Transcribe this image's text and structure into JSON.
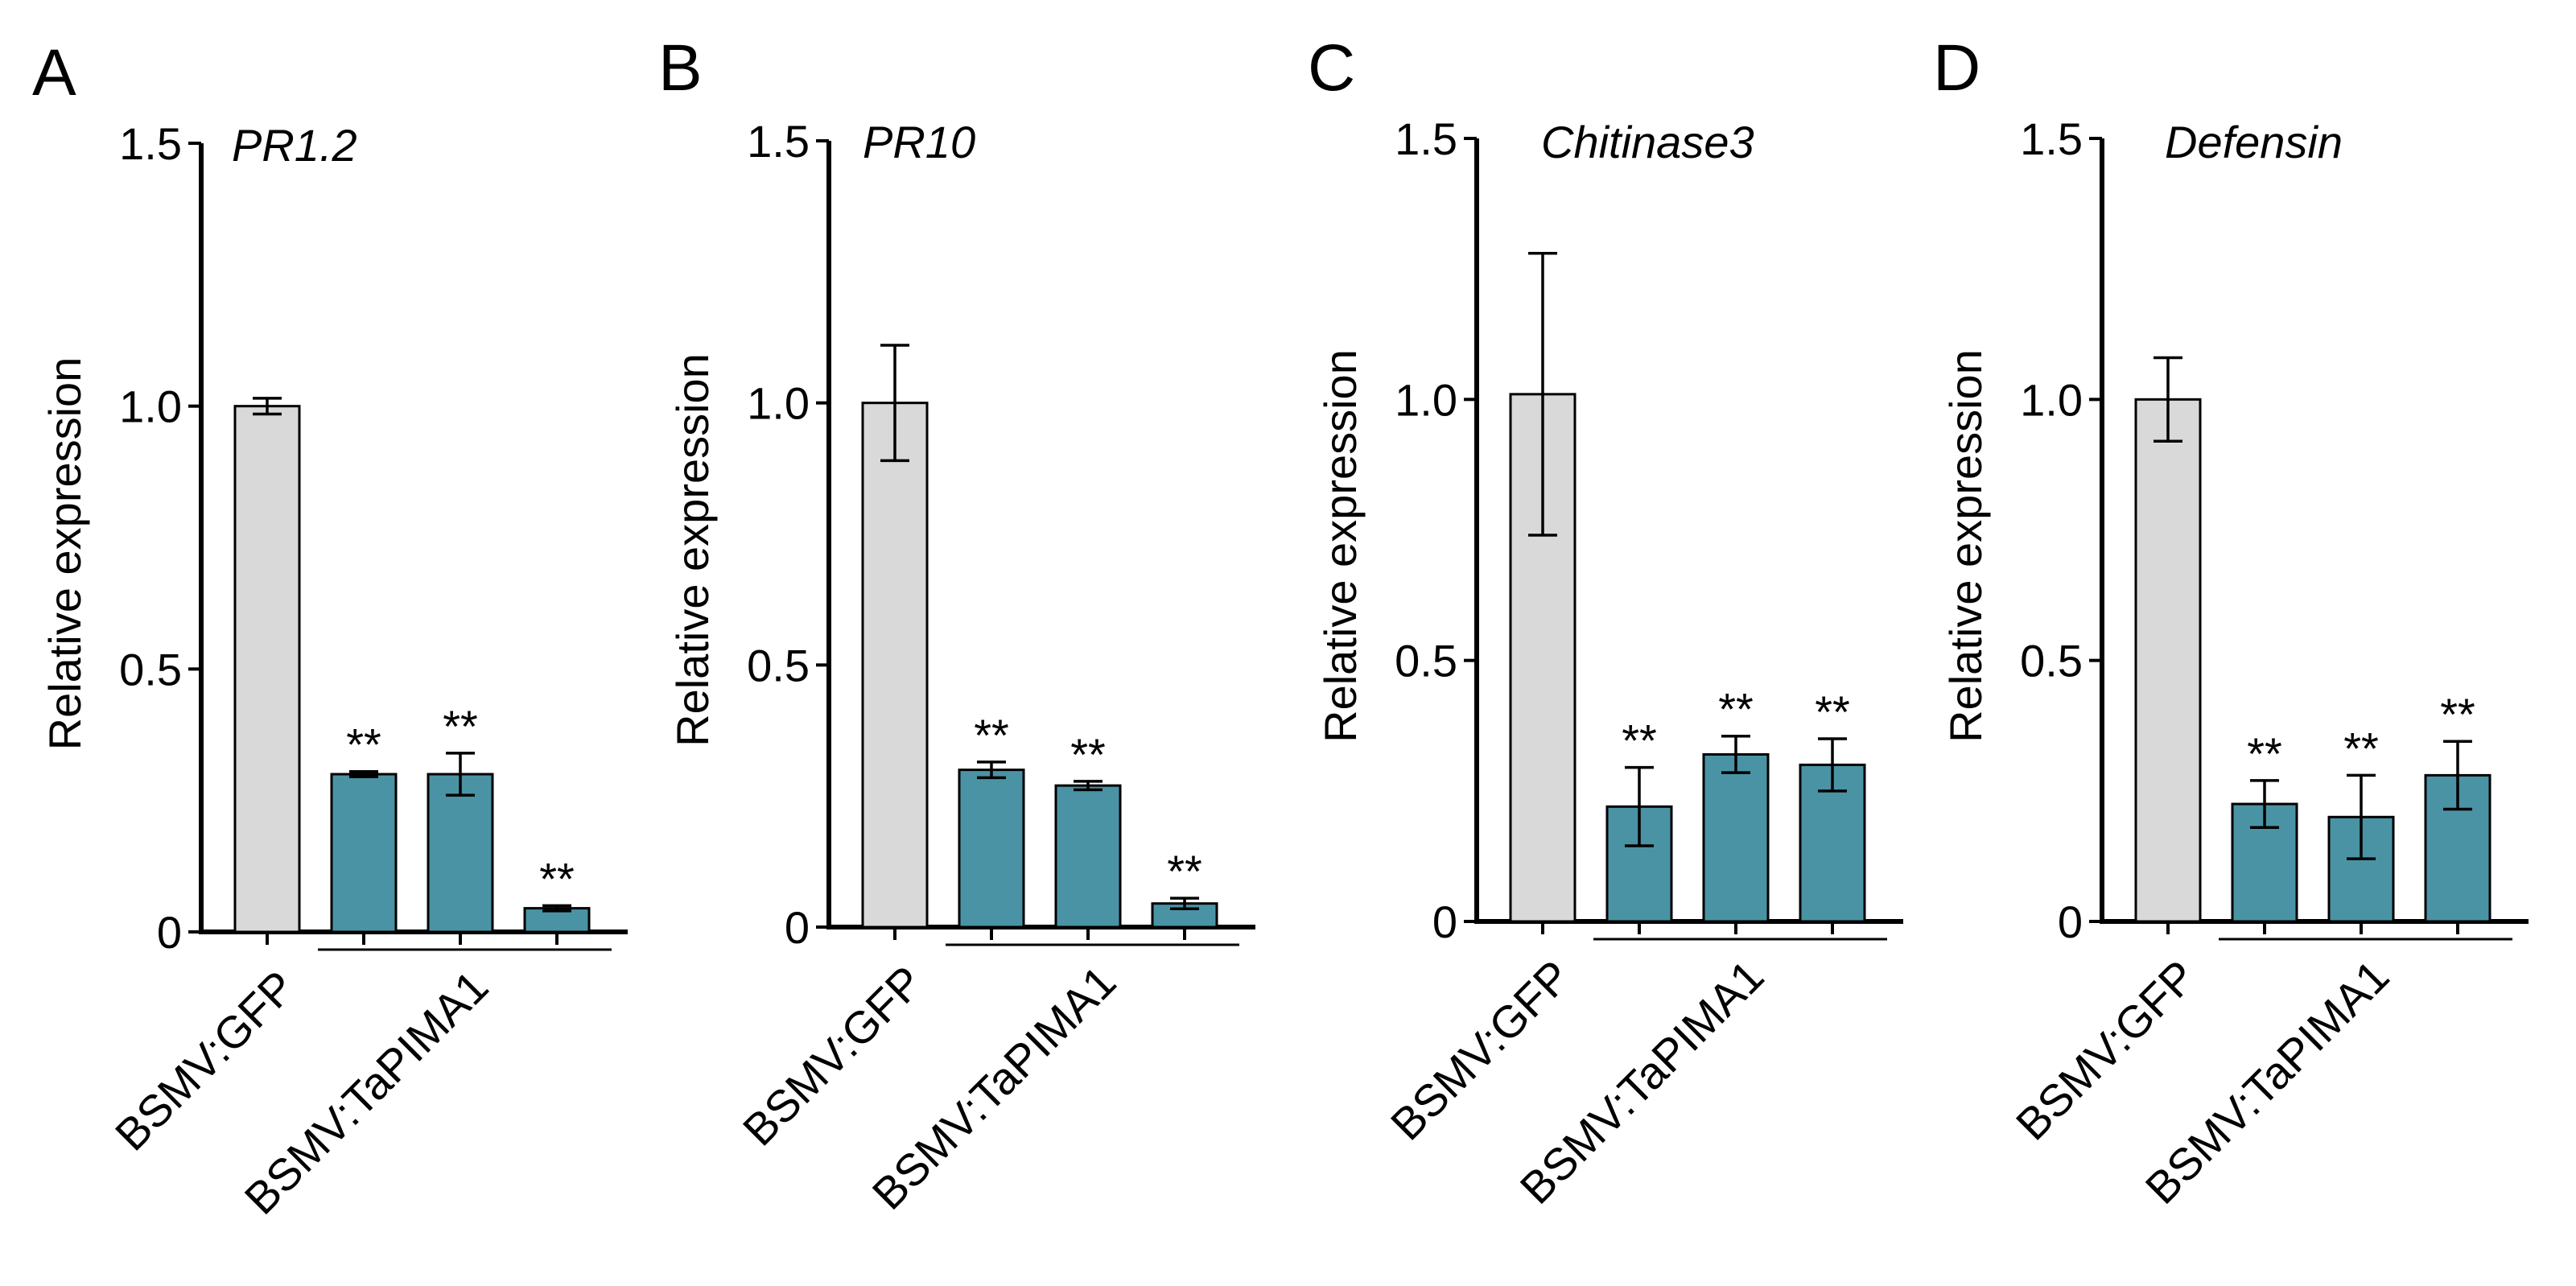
{
  "figure": {
    "colors": {
      "control": "#d9d9d9",
      "treatment": "#4a93a5",
      "stroke": "#000000"
    },
    "category_labels": {
      "control": "BSMV:GFP",
      "treatment": "BSMV:TaPIMA1"
    }
  },
  "chart_data": [
    {
      "type": "bar",
      "panel": "A",
      "title": "PR1.2",
      "xlabel": "",
      "ylabel": "Relative expression",
      "ylim": [
        0,
        1.5
      ],
      "yticks": [
        0,
        0.5,
        1.0,
        1.5
      ],
      "ytick_labels": [
        "0",
        "0.5",
        "1.0",
        "1.5"
      ],
      "categories": [
        "BSMV:GFP",
        "BSMV:TaPIMA1",
        "BSMV:TaPIMA1",
        "BSMV:TaPIMA1"
      ],
      "values": [
        1.0,
        0.3,
        0.3,
        0.045
      ],
      "errors": [
        0.015,
        0.005,
        0.04,
        0.005
      ],
      "significance": [
        "",
        "**",
        "**",
        "**"
      ]
    },
    {
      "type": "bar",
      "panel": "B",
      "title": "PR10",
      "xlabel": "",
      "ylabel": "Relative expression",
      "ylim": [
        0,
        1.5
      ],
      "yticks": [
        0,
        0.5,
        1.0,
        1.5
      ],
      "ytick_labels": [
        "0",
        "0.5",
        "1.0",
        "1.5"
      ],
      "categories": [
        "BSMV:GFP",
        "BSMV:TaPIMA1",
        "BSMV:TaPIMA1",
        "BSMV:TaPIMA1"
      ],
      "values": [
        1.0,
        0.3,
        0.27,
        0.045
      ],
      "errors": [
        0.11,
        0.015,
        0.008,
        0.01
      ],
      "significance": [
        "",
        "**",
        "**",
        "**"
      ]
    },
    {
      "type": "bar",
      "panel": "C",
      "title": "Chitinase3",
      "xlabel": "",
      "ylabel": "Relative expression",
      "ylim": [
        0,
        1.5
      ],
      "yticks": [
        0,
        0.5,
        1.0,
        1.5
      ],
      "ytick_labels": [
        "0",
        "0.5",
        "1.0",
        "1.5"
      ],
      "categories": [
        "BSMV:GFP",
        "BSMV:TaPIMA1",
        "BSMV:TaPIMA1",
        "BSMV:TaPIMA1"
      ],
      "values": [
        1.01,
        0.22,
        0.32,
        0.3
      ],
      "errors": [
        0.27,
        0.075,
        0.035,
        0.05
      ],
      "significance": [
        "",
        "**",
        "**",
        "**"
      ]
    },
    {
      "type": "bar",
      "panel": "D",
      "title": "Defensin",
      "xlabel": "",
      "ylabel": "Relative expression",
      "ylim": [
        0,
        1.5
      ],
      "yticks": [
        0,
        0.5,
        1.0,
        1.5
      ],
      "ytick_labels": [
        "0",
        "0.5",
        "1.0",
        "1.5"
      ],
      "categories": [
        "BSMV:GFP",
        "BSMV:TaPIMA1",
        "BSMV:TaPIMA1",
        "BSMV:TaPIMA1"
      ],
      "values": [
        1.0,
        0.225,
        0.2,
        0.28
      ],
      "errors": [
        0.08,
        0.045,
        0.08,
        0.065
      ],
      "significance": [
        "",
        "**",
        "**",
        "**"
      ]
    }
  ]
}
